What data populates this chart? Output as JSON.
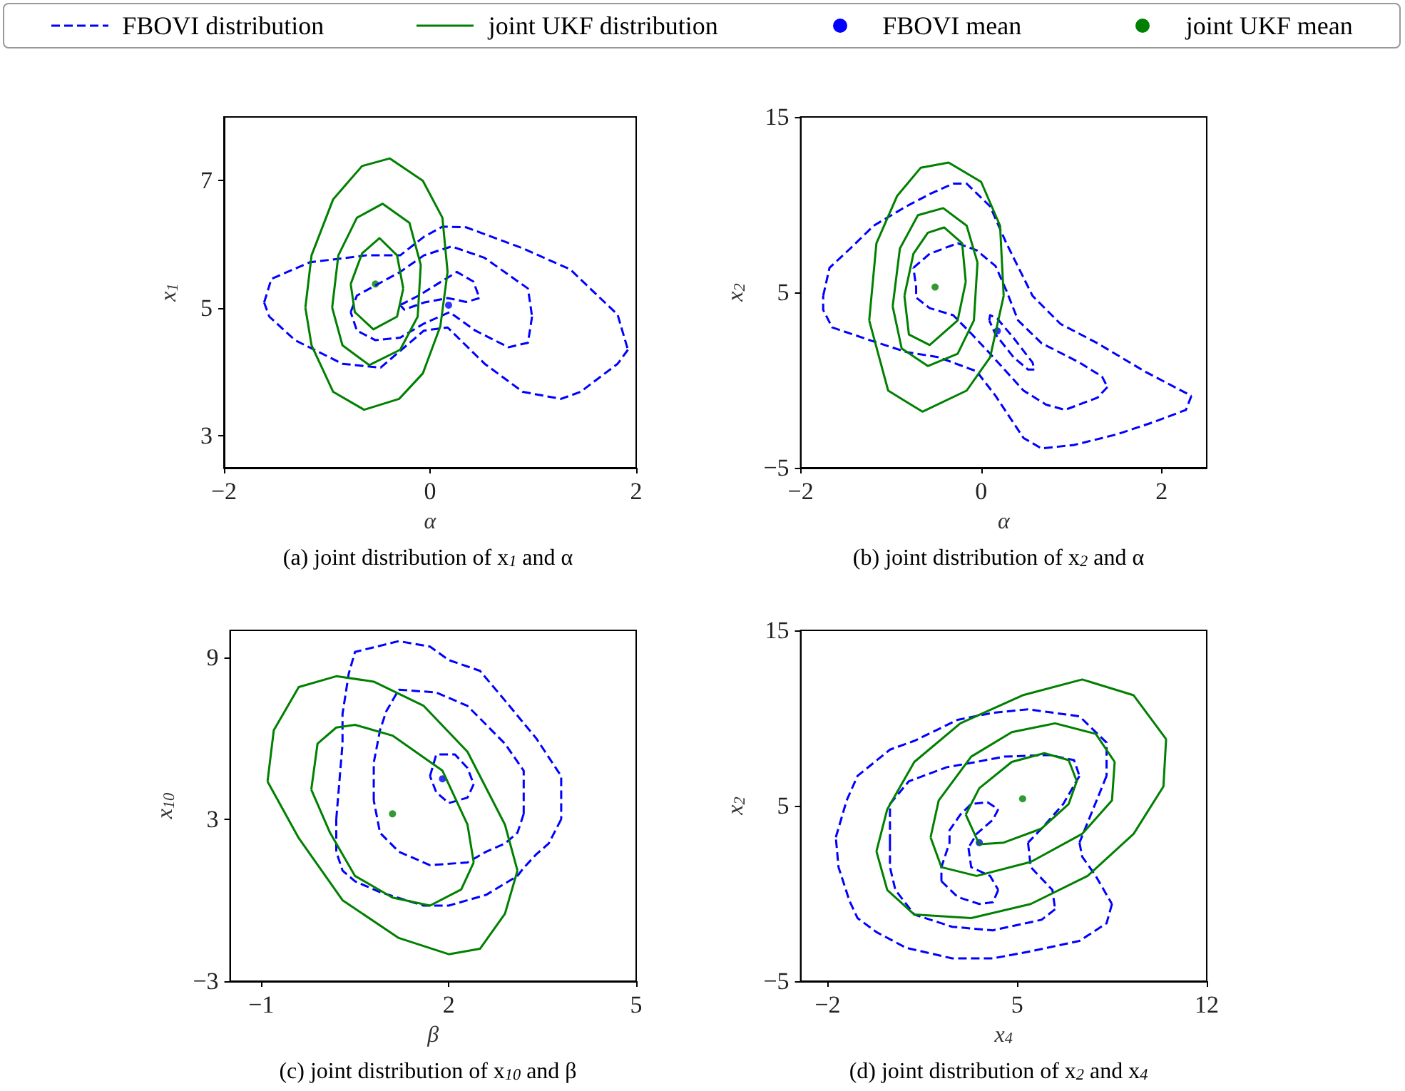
{
  "chart_data": [
    {
      "type": "line",
      "title": "(a) joint distribution of x$_{1}$ and α",
      "xlabel": "α",
      "ylabel": "x$_{1}$",
      "xlim": [
        -2,
        2
      ],
      "xticks": [
        -2,
        0,
        2
      ],
      "ylim": [
        2.5,
        8
      ],
      "yticks": [
        3,
        5,
        7
      ],
      "legend": "top",
      "series": [
        {
          "name": "FBOVI distribution",
          "color": "#0000ff",
          "line_style": "dashed",
          "marker": "none",
          "x": [
            -1.61,
            -1.54,
            -1.17,
            -0.62,
            -0.29,
            -0.06,
            0.12,
            0.35,
            0.9,
            1.36,
            1.82,
            1.92,
            null,
            1.92,
            1.82,
            1.46,
            1.27,
            0.9,
            0.53,
            0.17,
            -0.06,
            -0.48,
            -0.85,
            -1.31,
            -1.56,
            -1.61
          ],
          "values": [
            5.09,
            5.46,
            5.72,
            5.83,
            5.83,
            6.12,
            6.28,
            6.27,
            5.94,
            5.61,
            4.9,
            4.35,
            null,
            4.35,
            4.13,
            3.69,
            3.58,
            3.69,
            4.13,
            4.7,
            4.65,
            4.07,
            4.13,
            4.5,
            4.87,
            5.09
          ]
        },
        {
          "color": "#0000ff",
          "line_style": "dashed",
          "marker": "none",
          "x": [
            -0.77,
            -0.71,
            -0.29,
            -0.06,
            0.21,
            0.53,
            0.95,
            0.99,
            null,
            0.99,
            0.95,
            0.76,
            0.44,
            0.19,
            -0.06,
            -0.29,
            -0.53,
            -0.71,
            -0.77
          ],
          "values": [
            4.94,
            5.2,
            5.57,
            5.83,
            5.97,
            5.79,
            5.31,
            4.87,
            null,
            4.87,
            4.46,
            4.39,
            4.65,
            4.94,
            4.76,
            4.54,
            4.5,
            4.65,
            4.94
          ]
        },
        {
          "color": "#0000ff",
          "line_style": "dashed",
          "marker": "none",
          "x": [
            -0.29,
            -0.11,
            0.07,
            0.26,
            0.42,
            0.48,
            null,
            0.48,
            0.35,
            0.17,
            -0.06,
            -0.25,
            -0.29
          ],
          "values": [
            5.05,
            5.2,
            5.38,
            5.57,
            5.42,
            5.16,
            null,
            5.16,
            5.1,
            5.16,
            5.09,
            4.98,
            5.05
          ]
        },
        {
          "name": "joint UKF distribution",
          "color": "#008000",
          "line_style": "solid",
          "marker": "none",
          "x": [
            -1.21,
            -1.15,
            -0.94,
            -0.66,
            -0.39,
            -0.07,
            0.12,
            0.17,
            null,
            0.17,
            0.1,
            -0.07,
            -0.3,
            -0.64,
            -0.94,
            -1.15,
            -1.21
          ],
          "values": [
            5.01,
            5.83,
            6.71,
            7.23,
            7.35,
            7.0,
            6.42,
            5.57,
            null,
            5.57,
            4.72,
            3.98,
            3.58,
            3.41,
            3.69,
            4.42,
            5.01
          ]
        },
        {
          "color": "#008000",
          "line_style": "solid",
          "marker": "none",
          "x": [
            -0.95,
            -0.89,
            -0.71,
            -0.46,
            -0.2,
            -0.09,
            null,
            -0.09,
            -0.12,
            -0.29,
            -0.59,
            -0.85,
            -0.95
          ],
          "values": [
            5.01,
            5.83,
            6.42,
            6.64,
            6.34,
            5.68,
            null,
            5.68,
            4.87,
            4.35,
            4.11,
            4.42,
            5.01
          ]
        },
        {
          "color": "#008000",
          "line_style": "solid",
          "marker": "none",
          "x": [
            -0.77,
            -0.66,
            -0.49,
            -0.32,
            -0.26,
            null,
            -0.26,
            -0.32,
            -0.55,
            -0.73,
            -0.77
          ],
          "values": [
            5.38,
            5.86,
            6.1,
            5.83,
            5.31,
            null,
            5.31,
            4.87,
            4.67,
            4.94,
            5.38
          ]
        },
        {
          "name": "FBOVI mean",
          "type": "scatter",
          "color": "#0000ff",
          "marker": "circle",
          "x": [
            0.18
          ],
          "values": [
            5.05
          ]
        },
        {
          "name": "joint UKF mean",
          "type": "scatter",
          "color": "#008000",
          "marker": "circle",
          "x": [
            -0.53
          ],
          "values": [
            5.38
          ]
        }
      ]
    },
    {
      "type": "line",
      "title": "(b) joint distribution of x$_{2}$ and α",
      "xlabel": "α",
      "ylabel": "x$_{2}$",
      "xlim": [
        -2,
        2.5
      ],
      "xticks": [
        -2,
        0,
        2
      ],
      "ylim": [
        -5,
        15
      ],
      "yticks": [
        -5,
        5,
        15
      ],
      "series": [
        {
          "color": "#0000ff",
          "line_style": "dashed",
          "marker": "none",
          "x": [
            -1.75,
            -1.68,
            -1.45,
            -1.19,
            -0.83,
            -0.57,
            -0.31,
            -0.16,
            0.1,
            0.28,
            0.57,
            0.88,
            1.29,
            1.81,
            2.33,
            null,
            2.33,
            2.27,
            1.91,
            1.5,
            1.03,
            0.67,
            0.47,
            0.16,
            -0.05,
            -0.47,
            -0.83,
            -1.19,
            -1.65,
            -1.75,
            -1.75
          ],
          "values": [
            4.8,
            6.4,
            7.5,
            8.8,
            9.9,
            10.6,
            11.2,
            11.2,
            9.9,
            7.8,
            4.8,
            3.2,
            2.1,
            0.5,
            -0.9,
            null,
            -0.9,
            -1.7,
            -2.4,
            -3.1,
            -3.7,
            -3.9,
            -3.3,
            -0.9,
            0.5,
            1.3,
            1.6,
            2.2,
            3.0,
            4.0,
            4.8
          ]
        },
        {
          "color": "#0000ff",
          "line_style": "dashed",
          "marker": "none",
          "x": [
            -0.75,
            -0.57,
            -0.26,
            -0.05,
            0.16,
            0.28,
            0.41,
            0.67,
            1.09,
            1.34,
            1.4,
            null,
            1.4,
            1.29,
            0.93,
            0.72,
            0.47,
            0.1,
            -0.1,
            -0.31,
            -0.57,
            -0.72,
            -0.72,
            -0.75
          ],
          "values": [
            6.4,
            7.2,
            7.8,
            7.4,
            6.5,
            5.1,
            3.4,
            2.1,
            1.0,
            0.2,
            -0.4,
            null,
            -0.4,
            -1.0,
            -1.7,
            -1.4,
            -0.6,
            1.5,
            2.6,
            3.7,
            4.1,
            4.7,
            5.3,
            6.4
          ]
        },
        {
          "color": "#0000ff",
          "line_style": "dashed",
          "marker": "none",
          "x": [
            0.09,
            0.1,
            0.18,
            0.36,
            0.57,
            0.59,
            null,
            0.59,
            0.52,
            0.36,
            0.16,
            0.09
          ],
          "values": [
            3.4,
            3.7,
            3.5,
            2.4,
            1.0,
            0.6,
            null,
            0.6,
            0.6,
            1.3,
            2.6,
            3.4
          ]
        },
        {
          "color": "#008000",
          "line_style": "solid",
          "marker": "none",
          "x": [
            -1.24,
            -1.16,
            -0.93,
            -0.67,
            -0.36,
            0,
            0.21,
            0.25,
            null,
            0.25,
            0.1,
            -0.16,
            -0.65,
            -1.03,
            -1.24
          ],
          "values": [
            3.4,
            7.8,
            10.5,
            12.1,
            12.4,
            11.3,
            8.8,
            4.8,
            null,
            4.8,
            1.3,
            -0.6,
            -1.8,
            -0.6,
            3.4
          ]
        },
        {
          "color": "#008000",
          "line_style": "solid",
          "marker": "none",
          "x": [
            -0.98,
            -0.9,
            -0.7,
            -0.42,
            -0.16,
            -0.04,
            null,
            -0.04,
            -0.08,
            -0.26,
            -0.59,
            -0.88,
            -0.98
          ],
          "values": [
            4.2,
            7.5,
            9.4,
            9.8,
            8.8,
            6.7,
            null,
            6.7,
            3.4,
            1.5,
            0.8,
            1.8,
            4.2
          ]
        },
        {
          "color": "#008000",
          "line_style": "solid",
          "marker": "none",
          "x": [
            -0.85,
            -0.75,
            -0.59,
            -0.41,
            -0.21,
            -0.17,
            null,
            -0.17,
            -0.26,
            -0.57,
            -0.8,
            -0.85
          ],
          "values": [
            4.8,
            7.2,
            8.4,
            8.7,
            7.8,
            5.6,
            null,
            5.6,
            3.4,
            2.0,
            2.6,
            4.8
          ]
        },
        {
          "type": "scatter",
          "color": "#0000ff",
          "marker": "circle",
          "x": [
            0.18
          ],
          "values": [
            2.8
          ]
        },
        {
          "type": "scatter",
          "color": "#008000",
          "marker": "circle",
          "x": [
            -0.51
          ],
          "values": [
            5.3
          ]
        }
      ]
    },
    {
      "type": "line",
      "title": "(c) joint distribution of x$_{10}$ and β",
      "xlabel": "β",
      "ylabel": "x$_{10}$",
      "xlim": [
        -1.5,
        5
      ],
      "xticks": [
        -1,
        2,
        5
      ],
      "ylim": [
        -3,
        10
      ],
      "yticks": [
        -3,
        3,
        9
      ],
      "series": [
        {
          "color": "#0000ff",
          "line_style": "dashed",
          "marker": "none",
          "x": [
            0.2,
            0.3,
            0.3,
            0.4,
            0.5,
            1.2,
            1.7,
            2.0,
            2.5,
            2.9,
            3.4,
            3.8,
            3.8,
            3.8,
            null,
            3.8,
            3.6,
            3.4,
            3.2,
            3.1,
            2.6,
            2.0,
            1.6,
            0.9,
            0.5,
            0.3,
            0.2,
            0.2
          ],
          "values": [
            3.0,
            5.8,
            6.9,
            8.4,
            9.2,
            9.6,
            9.4,
            8.9,
            8.5,
            7.4,
            6.0,
            4.6,
            4.1,
            3.0,
            null,
            3.0,
            2.1,
            1.7,
            1.2,
            0.9,
            0.2,
            -0.2,
            -0.2,
            0.3,
            0.7,
            1.1,
            1.8,
            3.0
          ]
        },
        {
          "color": "#0000ff",
          "line_style": "dashed",
          "marker": "none",
          "x": [
            0.8,
            0.8,
            0.9,
            1.0,
            1.2,
            1.8,
            2.3,
            2.9,
            3.2,
            3.2,
            3.2,
            null,
            3.2,
            3.1,
            2.9,
            2.6,
            2.3,
            1.7,
            1.2,
            0.9,
            0.8
          ],
          "values": [
            3.7,
            5.1,
            6.3,
            7.0,
            7.8,
            7.7,
            7.2,
            5.8,
            4.8,
            3.9,
            3.2,
            null,
            3.2,
            2.5,
            2.1,
            1.8,
            1.4,
            1.3,
            1.8,
            2.5,
            3.7
          ]
        },
        {
          "color": "#0000ff",
          "line_style": "dashed",
          "marker": "none",
          "x": [
            1.7,
            1.8,
            2.1,
            2.3,
            2.4,
            null,
            2.4,
            2.3,
            2.0,
            1.8,
            1.7
          ],
          "values": [
            4.6,
            5.4,
            5.4,
            4.9,
            4.3,
            null,
            4.3,
            3.8,
            3.6,
            4.0,
            4.6
          ]
        },
        {
          "color": "#008000",
          "line_style": "solid",
          "marker": "none",
          "x": [
            -0.9,
            -0.8,
            -0.4,
            0.2,
            0.8,
            1.6,
            2.3,
            2.9,
            3.1,
            null,
            3.1,
            2.9,
            2.5,
            2.0,
            1.2,
            0.3,
            -0.4,
            -0.9
          ],
          "values": [
            4.4,
            6.3,
            7.9,
            8.3,
            8.1,
            7.2,
            5.5,
            2.8,
            1.1,
            null,
            1.1,
            -0.5,
            -1.8,
            -2.0,
            -1.4,
            0.0,
            2.3,
            4.4
          ]
        },
        {
          "color": "#008000",
          "line_style": "solid",
          "marker": "none",
          "x": [
            -0.2,
            -0.1,
            0.2,
            0.5,
            1.1,
            1.9,
            2.3,
            2.4,
            null,
            2.4,
            2.2,
            1.7,
            1.1,
            0.5,
            0.1,
            -0.2
          ],
          "values": [
            4.1,
            5.8,
            6.4,
            6.5,
            6.1,
            4.8,
            2.8,
            1.4,
            null,
            1.4,
            0.4,
            -0.2,
            0.1,
            0.9,
            2.5,
            4.1
          ]
        },
        {
          "type": "scatter",
          "color": "#0000ff",
          "marker": "circle",
          "x": [
            1.9
          ],
          "values": [
            4.5
          ]
        },
        {
          "type": "scatter",
          "color": "#008000",
          "marker": "circle",
          "x": [
            1.1
          ],
          "values": [
            3.2
          ]
        }
      ]
    },
    {
      "type": "line",
      "title": "(d) joint distribution of x$_{2}$ and x$_{4}$",
      "xlabel": "x$_{4}$",
      "ylabel": "x$_{2}$",
      "xlim": [
        -3,
        12
      ],
      "xticks": [
        -2,
        5,
        12
      ],
      "ylim": [
        -5,
        15
      ],
      "yticks": [
        -5,
        5,
        15
      ],
      "series": [
        {
          "color": "#0000ff",
          "line_style": "dashed",
          "marker": "none",
          "x": [
            -1.7,
            -1.3,
            -0.9,
            0.3,
            1.2,
            2.8,
            4.1,
            5.4,
            7.3,
            8.3,
            8.3,
            null,
            8.3,
            7.8,
            7.3,
            null,
            7.3,
            7.4,
            7.9,
            8.5,
            null,
            8.5,
            8.3,
            7.3,
            5.5,
            4.1,
            2.6,
            0.9,
            -0.2,
            -0.9,
            -1.2,
            -1.6,
            -1.7
          ],
          "values": [
            3.2,
            5.3,
            6.7,
            8.2,
            8.7,
            9.9,
            10.3,
            10.5,
            10.1,
            8.6,
            6.7,
            null,
            6.7,
            4.8,
            2.9,
            null,
            2.9,
            2.1,
            1.0,
            -0.6,
            null,
            -0.6,
            -1.7,
            -2.7,
            -3.3,
            -3.7,
            -3.7,
            -3.1,
            -2.2,
            -1.4,
            -0.4,
            1.5,
            3.2
          ]
        },
        {
          "color": "#0000ff",
          "line_style": "dashed",
          "marker": "none",
          "x": [
            0.3,
            0.3,
            1.0,
            2.4,
            3.5,
            4.5,
            6.2,
            7.1,
            7.3,
            null,
            7.3,
            6.7,
            5.9,
            5.4,
            null,
            5.4,
            5.5,
            6.3,
            6.4,
            null,
            6.4,
            5.9,
            4.1,
            2.6,
            1.2,
            0.5,
            0.3,
            0.3
          ],
          "values": [
            2.9,
            5.1,
            6.4,
            7.2,
            7.5,
            7.8,
            7.9,
            7.6,
            6.7,
            null,
            6.7,
            5.1,
            3.7,
            2.9,
            null,
            2.9,
            1.5,
            0.2,
            -0.9,
            null,
            -0.9,
            -1.5,
            -2.1,
            -1.9,
            -1.2,
            0.2,
            1.5,
            2.9
          ]
        },
        {
          "color": "#0000ff",
          "line_style": "dashed",
          "marker": "none",
          "x": [
            2.2,
            2.2,
            2.5,
            2.5,
            2.9,
            3.3,
            3.9,
            4.3,
            null,
            4.3,
            4.1,
            3.5,
            3.2,
            null,
            3.2,
            3.3,
            4.0,
            4.3,
            null,
            4.3,
            4.1,
            3.6,
            2.8,
            2.2
          ],
          "values": [
            0.7,
            1.5,
            2.9,
            3.6,
            4.5,
            5.1,
            5.2,
            4.8,
            null,
            4.8,
            4.2,
            3.4,
            2.6,
            null,
            2.6,
            1.5,
            1.0,
            0.2,
            null,
            0.2,
            -0.5,
            -0.6,
            -0.2,
            0.7
          ]
        },
        {
          "color": "#008000",
          "line_style": "solid",
          "marker": "none",
          "x": [
            -0.2,
            0.2,
            1.2,
            2.9,
            5.2,
            7.4,
            9.3,
            10.5,
            null,
            10.5,
            10.4,
            9.3,
            7.6,
            5.5,
            3.3,
            1.2,
            0.2,
            -0.2
          ],
          "values": [
            2.4,
            4.8,
            7.5,
            9.7,
            11.3,
            12.2,
            11.3,
            8.8,
            null,
            8.8,
            6.1,
            3.4,
            1.0,
            -0.6,
            -1.4,
            -1.2,
            0.2,
            2.4
          ]
        },
        {
          "color": "#008000",
          "line_style": "solid",
          "marker": "none",
          "x": [
            1.8,
            2.1,
            3.3,
            4.8,
            6.4,
            7.9,
            8.6,
            null,
            8.6,
            8.5,
            7.4,
            5.5,
            3.5,
            2.2,
            1.8
          ],
          "values": [
            3.2,
            5.3,
            7.8,
            9.2,
            9.7,
            9.1,
            7.5,
            null,
            7.5,
            5.3,
            3.4,
            1.8,
            1.0,
            1.5,
            3.2
          ]
        },
        {
          "color": "#008000",
          "line_style": "solid",
          "marker": "none",
          "x": [
            3.1,
            3.6,
            4.8,
            6.0,
            6.9,
            7.2,
            null,
            7.2,
            6.9,
            5.9,
            4.5,
            3.6,
            3.1
          ],
          "values": [
            4.5,
            6.0,
            7.5,
            8.0,
            7.6,
            6.4,
            null,
            6.4,
            5.1,
            3.7,
            2.9,
            2.8,
            4.5
          ]
        },
        {
          "type": "scatter",
          "color": "#0000ff",
          "marker": "circle",
          "x": [
            3.6
          ],
          "values": [
            2.9
          ]
        },
        {
          "type": "scatter",
          "color": "#008000",
          "marker": "circle",
          "x": [
            5.2
          ],
          "values": [
            5.4
          ]
        }
      ]
    }
  ]
}
